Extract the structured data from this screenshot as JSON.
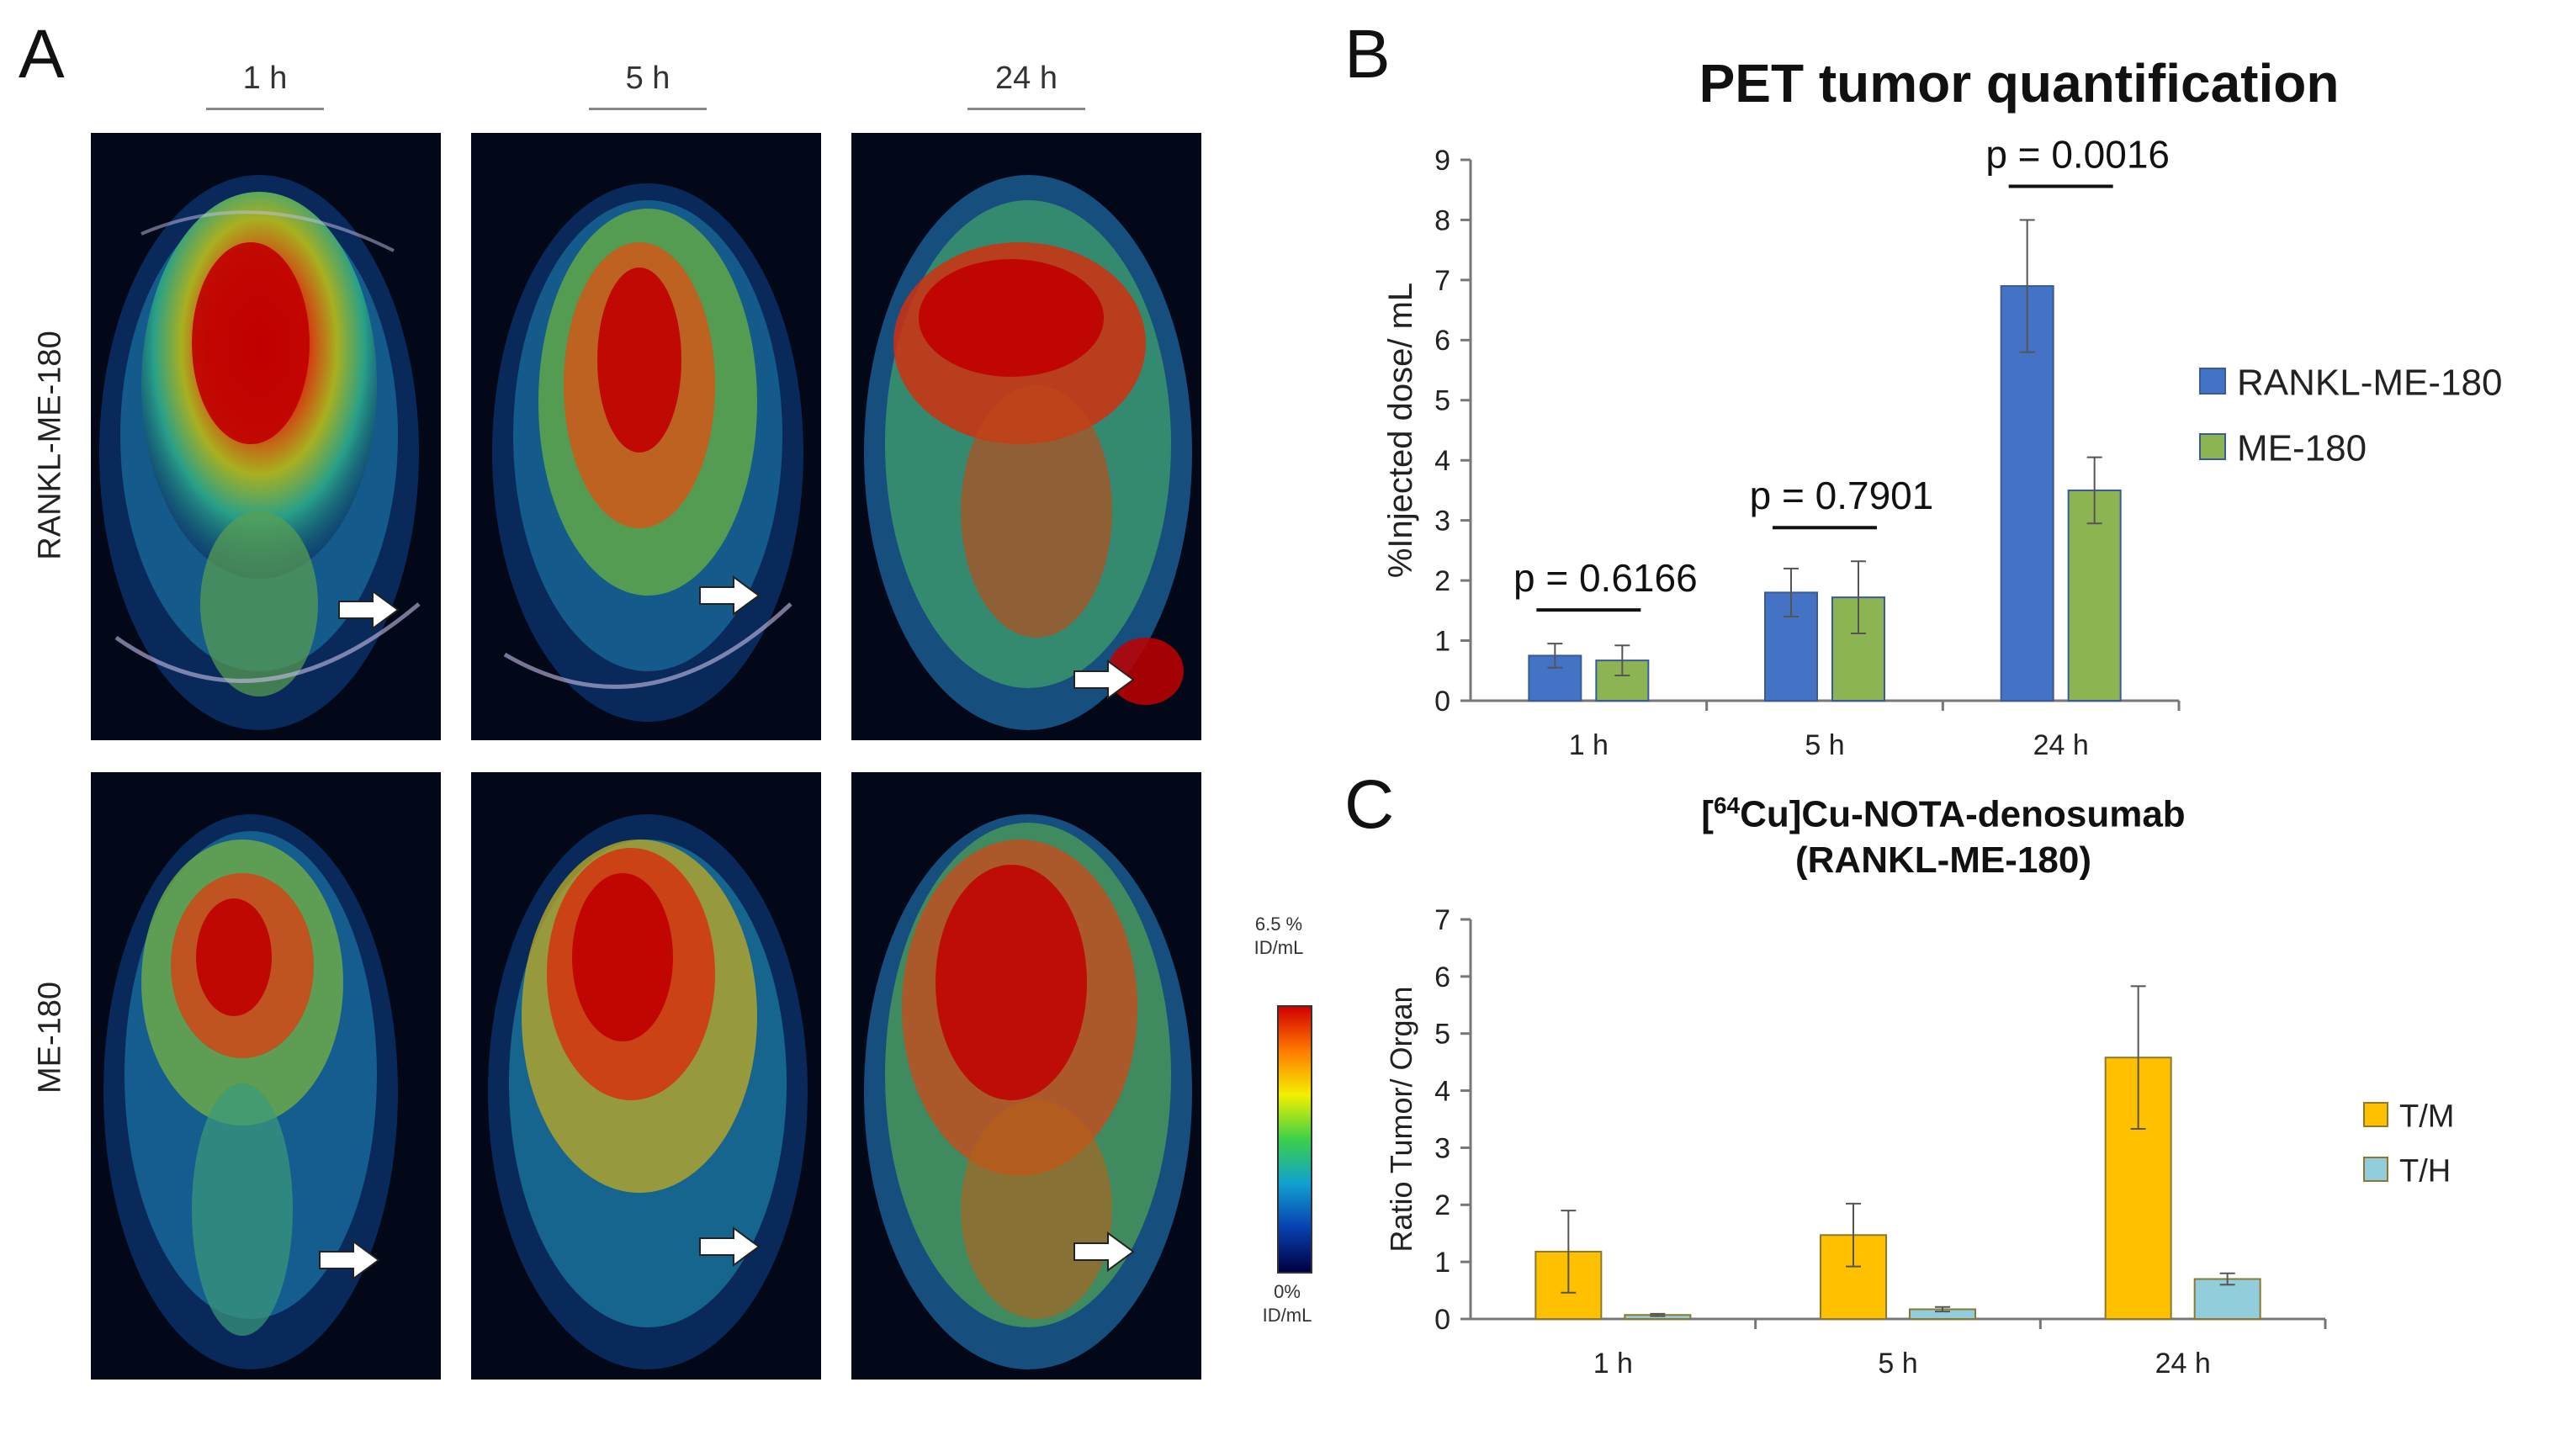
{
  "panel_a": {
    "letter": "A",
    "columns": [
      "1 h",
      "5 h",
      "24 h"
    ],
    "rows": [
      "RANKL-ME-180",
      "ME-180"
    ],
    "colorbar": {
      "max_label": "6.5 % ID/mL",
      "min_label": "0% ID/mL",
      "colors": [
        "#d20000",
        "#ff7b00",
        "#f2f000",
        "#3cd04a",
        "#10a0d0",
        "#0840b0",
        "#000040"
      ]
    },
    "arrow_icon": "right-arrow-icon"
  },
  "panel_b": {
    "letter": "B"
  },
  "panel_c": {
    "letter": "C"
  },
  "chart_data": [
    {
      "id": "B",
      "type": "bar",
      "title": "PET tumor quantification",
      "categories": [
        "1 h",
        "5 h",
        "24 h"
      ],
      "series": [
        {
          "name": "RANKL-ME-180",
          "color": "#4472c4",
          "values": [
            0.75,
            1.8,
            6.9
          ],
          "errors": [
            0.2,
            0.4,
            1.1
          ]
        },
        {
          "name": "ME-180",
          "color": "#8db452",
          "values": [
            0.67,
            1.72,
            3.5
          ],
          "errors": [
            0.25,
            0.6,
            0.55
          ]
        }
      ],
      "ylabel": "%Injected dose/ mL",
      "xlabel": "",
      "ylim": [
        0,
        9
      ],
      "yticks": [
        0,
        1,
        2,
        3,
        4,
        5,
        6,
        7,
        8,
        9
      ],
      "pvalues": [
        "p = 0.6166",
        "p = 0.7901",
        "p = 0.0016"
      ],
      "legend": "right"
    },
    {
      "id": "C",
      "type": "bar",
      "title_prefix": "[",
      "title_sup": "64",
      "title_main": "Cu]Cu-NOTA-denosumab",
      "title_line2": "(RANKL-ME-180)",
      "categories": [
        "1 h",
        "5 h",
        "24 h"
      ],
      "series": [
        {
          "name": "T/M",
          "color": "#ffc000",
          "values": [
            1.18,
            1.47,
            4.58
          ],
          "errors": [
            0.72,
            0.55,
            1.25
          ]
        },
        {
          "name": "T/H",
          "color": "#92cddc",
          "values": [
            0.07,
            0.17,
            0.7
          ],
          "errors": [
            0.02,
            0.04,
            0.1
          ]
        }
      ],
      "ylabel": "Ratio Tumor/ Organ",
      "xlabel": "",
      "ylim": [
        0,
        7
      ],
      "yticks": [
        0,
        1,
        2,
        3,
        4,
        5,
        6,
        7
      ],
      "legend": "right"
    }
  ]
}
